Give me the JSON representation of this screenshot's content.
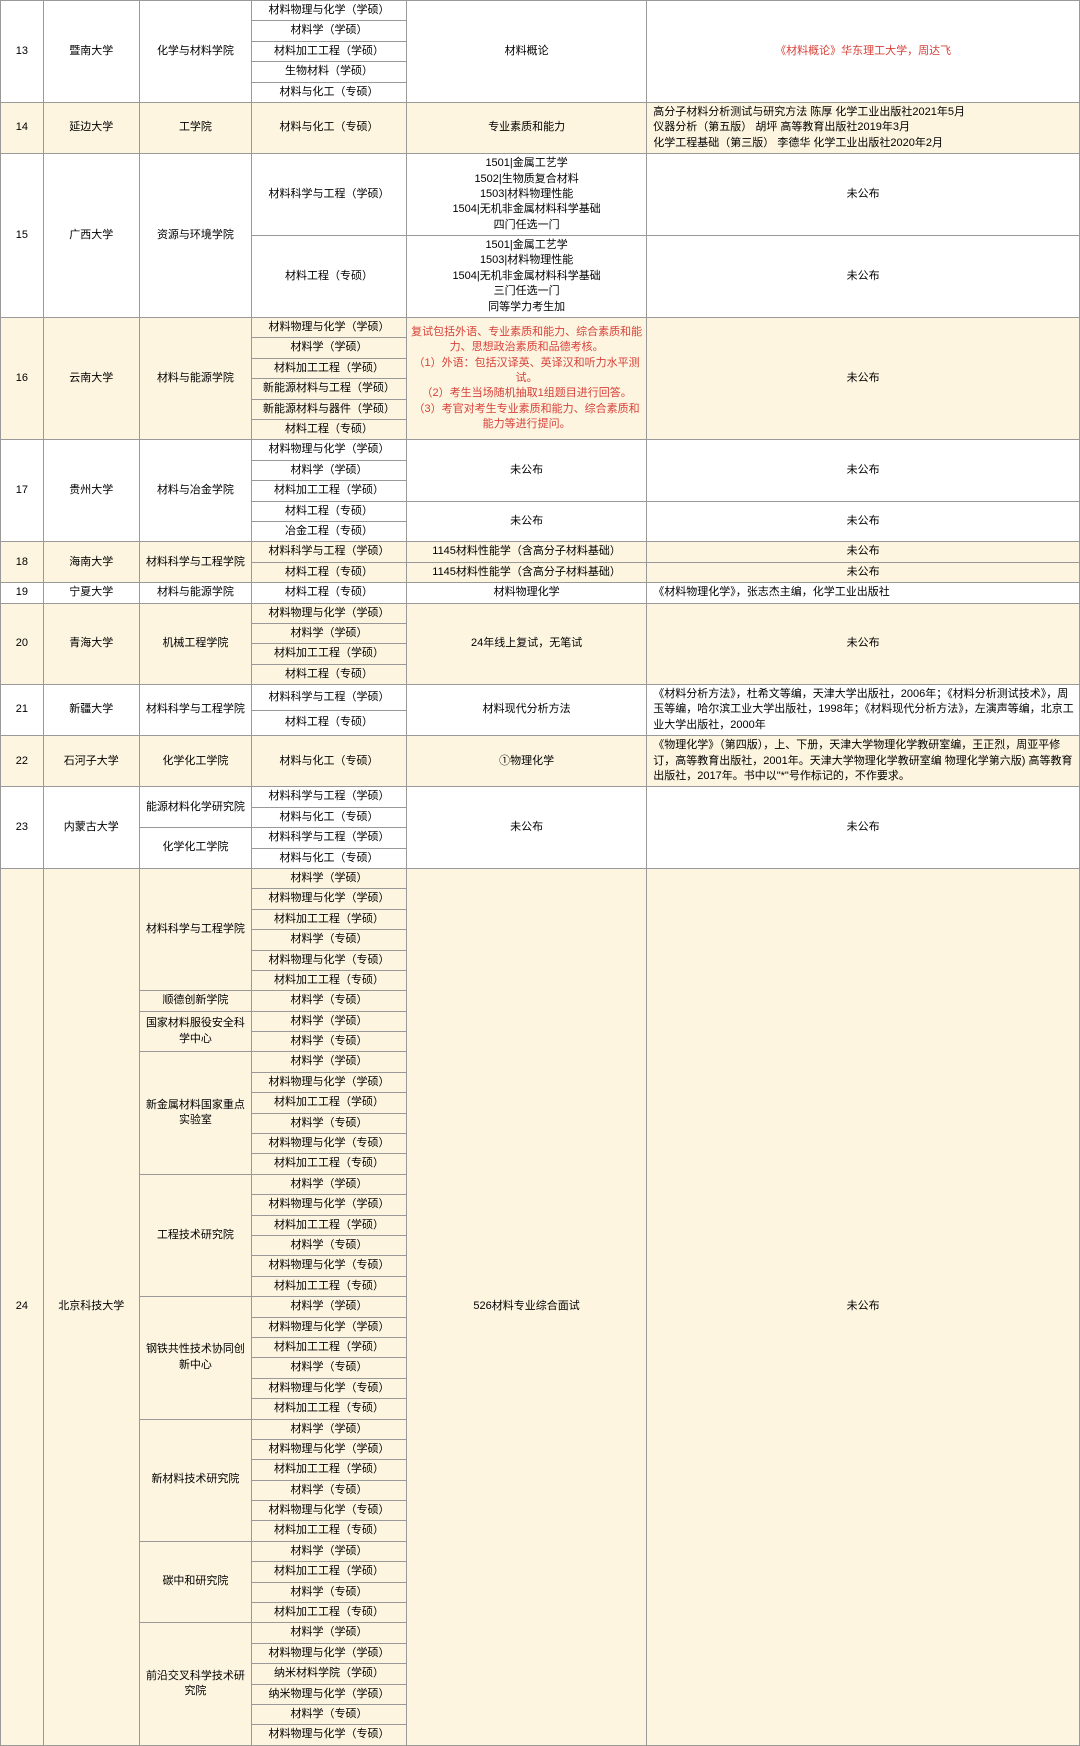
{
  "rows": [
    {
      "idx": "13",
      "uni": "暨南大学",
      "dept": "化学与材料学院",
      "majors": [
        "材料物理与化学（学硕）",
        "材料学（学硕）",
        "材料加工工程（学硕）",
        "生物材料（学硕）",
        "材料与化工（专硕）"
      ],
      "exam": "材料概论",
      "book": "《材料概论》华东理工大学，周达飞",
      "cream": false,
      "bookRed": true
    },
    {
      "idx": "14",
      "uni": "延边大学",
      "dept": "工学院",
      "majors": [
        "材料与化工（专硕）"
      ],
      "exam": "专业素质和能力",
      "book": "高分子材料分析测试与研究方法 陈厚 化学工业出版社2021年5月\n仪器分析（第五版） 胡坪 高等教育出版社2019年3月\n化学工程基础（第三版） 李德华 化学工业出版社2020年2月",
      "cream": true,
      "bookLeft": true
    },
    {
      "idx": "15",
      "uni": "广西大学",
      "dept": "资源与环境学院",
      "sub": [
        {
          "majors": [
            "材料科学与工程（学硕）"
          ],
          "exam": "1501|金属工艺学\n1502|生物质复合材料\n1503|材料物理性能\n1504|无机非金属材料科学基础\n四门任选一门",
          "book": "未公布"
        },
        {
          "majors": [
            "材料工程（专硕）"
          ],
          "exam": "1501|金属工艺学\n1503|材料物理性能\n1504|无机非金属材料科学基础\n三门任选一门\n同等学力考生加",
          "book": "未公布"
        }
      ],
      "cream": false
    },
    {
      "idx": "16",
      "uni": "云南大学",
      "dept": "材料与能源学院",
      "majors": [
        "材料物理与化学（学硕）",
        "材料学（学硕）",
        "材料加工工程（学硕）",
        "新能源材料与工程（学硕）",
        "新能源材料与器件（学硕）",
        "材料工程（专硕）"
      ],
      "exam": "复试包括外语、专业素质和能力、综合素质和能力、思想政治素质和品德考核。\n（1）外语：包括汉译英、英译汉和听力水平测试。\n（2）考生当场随机抽取1组题目进行回答。\n（3）考官对考生专业素质和能力、综合素质和能力等进行提问。",
      "book": "未公布",
      "cream": true,
      "examRed": true
    },
    {
      "idx": "17",
      "uni": "贵州大学",
      "dept": "材料与冶金学院",
      "sub": [
        {
          "majors": [
            "材料物理与化学（学硕）",
            "材料学（学硕）",
            "材料加工工程（学硕）"
          ],
          "exam": "未公布",
          "book": "未公布"
        },
        {
          "majors": [
            "材料工程（专硕）",
            "冶金工程（专硕）"
          ],
          "exam": "未公布",
          "book": "未公布"
        }
      ],
      "cream": false
    },
    {
      "idx": "18",
      "uni": "海南大学",
      "dept": "材料科学与工程学院",
      "sub": [
        {
          "majors": [
            "材料科学与工程（学硕）"
          ],
          "exam": "1145材料性能学（含高分子材料基础）",
          "book": "未公布"
        },
        {
          "majors": [
            "材料工程（专硕）"
          ],
          "exam": "1145材料性能学（含高分子材料基础）",
          "book": "未公布"
        }
      ],
      "cream": true
    },
    {
      "idx": "19",
      "uni": "宁夏大学",
      "dept": "材料与能源学院",
      "majors": [
        "材料工程（专硕）"
      ],
      "exam": "材料物理化学",
      "book": "《材料物理化学》，张志杰主编，化学工业出版社",
      "cream": false,
      "bookLeft": true
    },
    {
      "idx": "20",
      "uni": "青海大学",
      "dept": "机械工程学院",
      "majors": [
        "材料物理与化学（学硕）",
        "材料学（学硕）",
        "材料加工工程（学硕）",
        "材料工程（专硕）"
      ],
      "exam": "24年线上复试，无笔试",
      "book": "未公布",
      "cream": true
    },
    {
      "idx": "21",
      "uni": "新疆大学",
      "dept": "材料科学与工程学院",
      "majors": [
        "材料科学与工程（学硕）",
        "材料工程（专硕）"
      ],
      "exam": "材料现代分析方法",
      "book": "《材料分析方法》，杜希文等编，天津大学出版社，2006年；《材料分析测试技术》，周玉等编，哈尔滨工业大学出版社，1998年；《材料现代分析方法》，左演声等编，北京工业大学出版社，2000年",
      "cream": false,
      "bookLeft": true
    },
    {
      "idx": "22",
      "uni": "石河子大学",
      "dept": "化学化工学院",
      "majors": [
        "材料与化工（专硕）"
      ],
      "exam": "①物理化学",
      "book": "《物理化学》（第四版），上、下册，天津大学物理化学教研室编，王正烈，周亚平修订，高等教育出版社，2001年。天津大学物理化学教研室编 物理化学第六版) 高等教育出版社，2017年。书中以\"*\"号作标记的，不作要求。",
      "cream": true,
      "bookLeft": true
    },
    {
      "idx": "23",
      "uni": "内蒙古大学",
      "depts": [
        {
          "dept": "能源材料化学研究院",
          "majors": [
            "材料科学与工程（学硕）",
            "材料与化工（专硕）"
          ]
        },
        {
          "dept": "化学化工学院",
          "majors": [
            "材料科学与工程（学硕）",
            "材料与化工（专硕）"
          ]
        }
      ],
      "exam": "未公布",
      "book": "未公布",
      "cream": false
    },
    {
      "idx": "24",
      "uni": "北京科技大学",
      "depts": [
        {
          "dept": "材料科学与工程学院",
          "majors": [
            "材料学（学硕）",
            "材料物理与化学（学硕）",
            "材料加工工程（学硕）",
            "材料学（专硕）",
            "材料物理与化学（专硕）",
            "材料加工工程（专硕）"
          ]
        },
        {
          "dept": "顺德创新学院",
          "majors": [
            "材料学（专硕）"
          ]
        },
        {
          "dept": "国家材料服役安全科学中心",
          "majors": [
            "材料学（学硕）",
            "材料学（专硕）"
          ]
        },
        {
          "dept": "新金属材料国家重点实验室",
          "majors": [
            "材料学（学硕）",
            "材料物理与化学（学硕）",
            "材料加工工程（学硕）",
            "材料学（专硕）",
            "材料物理与化学（专硕）",
            "材料加工工程（专硕）"
          ]
        },
        {
          "dept": "工程技术研究院",
          "majors": [
            "材料学（学硕）",
            "材料物理与化学（学硕）",
            "材料加工工程（学硕）",
            "材料学（专硕）",
            "材料物理与化学（专硕）",
            "材料加工工程（专硕）"
          ]
        },
        {
          "dept": "钢铁共性技术协同创新中心",
          "majors": [
            "材料学（学硕）",
            "材料物理与化学（学硕）",
            "材料加工工程（学硕）",
            "材料学（专硕）",
            "材料物理与化学（专硕）",
            "材料加工工程（专硕）"
          ]
        },
        {
          "dept": "新材料技术研究院",
          "majors": [
            "材料学（学硕）",
            "材料物理与化学（学硕）",
            "材料加工工程（学硕）",
            "材料学（专硕）",
            "材料物理与化学（专硕）",
            "材料加工工程（专硕）"
          ]
        },
        {
          "dept": "碳中和研究院",
          "majors": [
            "材料学（学硕）",
            "材料加工工程（学硕）",
            "材料学（专硕）",
            "材料加工工程（专硕）"
          ]
        },
        {
          "dept": "前沿交叉科学技术研究院",
          "majors": [
            "材料学（学硕）",
            "材料物理与化学（学硕）",
            "纳米材料学院（学硕）",
            "纳米物理与化学（学硕）",
            "材料学（专硕）",
            "材料物理与化学（专硕）"
          ]
        }
      ],
      "exam": "526材料专业综合面试",
      "book": "未公布",
      "cream": true
    }
  ]
}
